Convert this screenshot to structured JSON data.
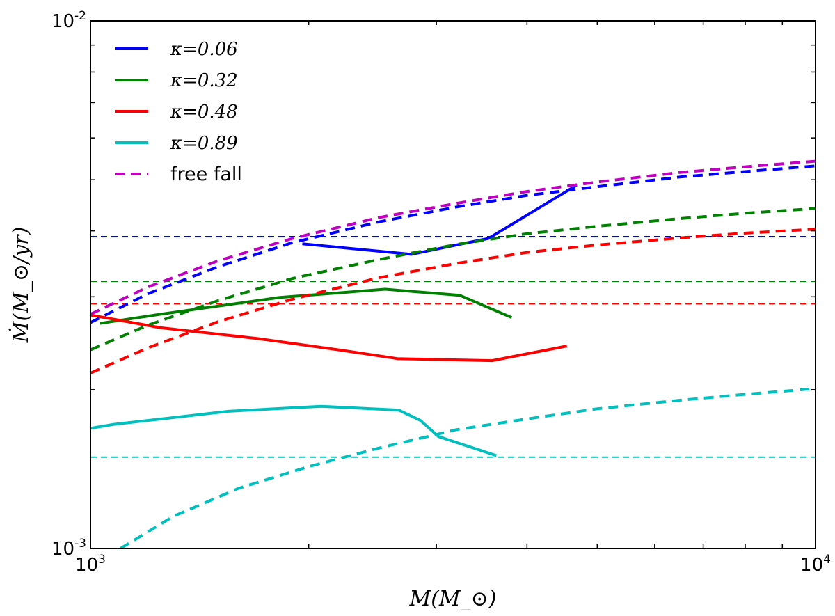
{
  "chart_data": {
    "type": "line",
    "title": "",
    "xlabel": "M(M_⊙)",
    "ylabel": "Ṁ(M_⊙/yr)",
    "xscale": "log",
    "yscale": "log",
    "xlim": [
      1000,
      10000
    ],
    "ylim": [
      0.001,
      0.01
    ],
    "x_ticks": [
      {
        "value": 1000,
        "base": "10",
        "exp": "3"
      },
      {
        "value": 10000,
        "base": "10",
        "exp": "4"
      }
    ],
    "y_ticks": [
      {
        "value": 0.001,
        "base": "10",
        "exp": "-3"
      },
      {
        "value": 0.01,
        "base": "10",
        "exp": "-2"
      }
    ],
    "grid": false,
    "legend_position": "top-left",
    "legend": [
      {
        "prefix": "κ",
        "eq": "=",
        "value": "0.06",
        "color": "#0000ff",
        "style": "solid"
      },
      {
        "prefix": "κ",
        "eq": "=",
        "value": "0.32",
        "color": "#008000",
        "style": "solid"
      },
      {
        "prefix": "κ",
        "eq": "=",
        "value": "0.48",
        "color": "#ff0000",
        "style": "solid"
      },
      {
        "prefix": "κ",
        "eq": "=",
        "value": "0.89",
        "color": "#00bfbf",
        "style": "solid"
      },
      {
        "prefix": "",
        "eq": "",
        "value": "free fall",
        "color": "#bf00bf",
        "style": "dashed"
      }
    ],
    "series": [
      {
        "name": "κ=0.06",
        "color": "#0000ff",
        "style": "solid",
        "x": [
          1960,
          2770,
          3540,
          4680
        ],
        "y": [
          0.00378,
          0.00361,
          0.00387,
          0.00488
        ]
      },
      {
        "name": "κ=0.32",
        "color": "#008000",
        "style": "solid",
        "x": [
          1030,
          1250,
          1820,
          2550,
          3230,
          3810
        ],
        "y": [
          0.00267,
          0.00278,
          0.00299,
          0.0031,
          0.00302,
          0.00274
        ]
      },
      {
        "name": "κ=0.48",
        "color": "#ff0000",
        "style": "solid",
        "x": [
          1000,
          1250,
          1700,
          2200,
          2650,
          3580,
          4540
        ],
        "y": [
          0.00277,
          0.00262,
          0.0025,
          0.00238,
          0.00229,
          0.00227,
          0.00242
        ]
      },
      {
        "name": "κ=0.89",
        "color": "#00bfbf",
        "style": "solid",
        "x": [
          1000,
          1080,
          1300,
          1550,
          2080,
          2660,
          2850,
          3020,
          3630
        ],
        "y": [
          0.00169,
          0.00172,
          0.00177,
          0.00182,
          0.00186,
          0.00183,
          0.00175,
          0.00163,
          0.0015
        ]
      },
      {
        "name": "free fall",
        "color": "#bf00bf",
        "style": "dashed",
        "x": [
          1000,
          1200,
          1500,
          1900,
          2500,
          3200,
          4000,
          5000,
          6500,
          8000,
          10000
        ],
        "y": [
          0.00278,
          0.00313,
          0.00351,
          0.00387,
          0.00424,
          0.00451,
          0.00475,
          0.00495,
          0.00516,
          0.00529,
          0.00542
        ]
      },
      {
        "name": "κ=0.06 (dashed)",
        "color": "#0000ff",
        "style": "dashed",
        "x": [
          1000,
          1200,
          1500,
          1900,
          2500,
          3200,
          4000,
          5000,
          6500,
          8000,
          10000
        ],
        "y": [
          0.00268,
          0.00304,
          0.00342,
          0.0038,
          0.00416,
          0.00444,
          0.00467,
          0.00485,
          0.00506,
          0.00518,
          0.00531
        ]
      },
      {
        "name": "κ=0.32 (dashed)",
        "color": "#008000",
        "style": "dashed",
        "x": [
          1000,
          1200,
          1500,
          1900,
          2500,
          3200,
          4000,
          5000,
          6500,
          8000,
          10000
        ],
        "y": [
          0.00238,
          0.00265,
          0.00295,
          0.00325,
          0.00353,
          0.00377,
          0.00395,
          0.00408,
          0.00422,
          0.00432,
          0.00441
        ]
      },
      {
        "name": "κ=0.48 (dashed)",
        "color": "#ff0000",
        "style": "dashed",
        "x": [
          1000,
          1200,
          1500,
          1900,
          2500,
          3200,
          4000,
          5000,
          6500,
          8000,
          10000
        ],
        "y": [
          0.00215,
          0.0024,
          0.00269,
          0.00297,
          0.00326,
          0.00347,
          0.00364,
          0.00376,
          0.00388,
          0.00396,
          0.00403
        ]
      },
      {
        "name": "κ=0.89 (dashed)",
        "color": "#00bfbf",
        "style": "dashed",
        "x": [
          1100,
          1300,
          1600,
          2000,
          2500,
          3200,
          4000,
          5000,
          6500,
          8000,
          10000
        ],
        "y": [
          0.001,
          0.00115,
          0.0013,
          0.00143,
          0.00155,
          0.00168,
          0.00176,
          0.00184,
          0.00191,
          0.00196,
          0.00201
        ]
      }
    ],
    "thresholds": [
      {
        "color": "#0000ff",
        "y": 0.0039
      },
      {
        "color": "#008000",
        "y": 0.00321
      },
      {
        "color": "#ff0000",
        "y": 0.00291
      },
      {
        "color": "#00bfbf",
        "y": 0.00149
      }
    ]
  }
}
